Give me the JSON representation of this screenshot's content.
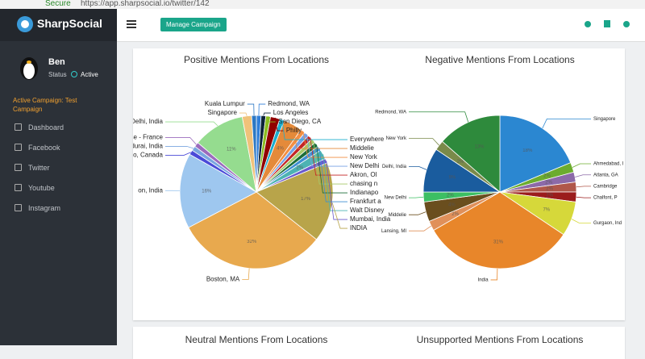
{
  "browser": {
    "secure": "Secure",
    "url": "https://app.sharpsocial.io/twitter/142"
  },
  "sidebar": {
    "logo": "SharpSocial",
    "user": {
      "name": "Ben",
      "status_label": "Status",
      "status": "Active"
    },
    "campaign": "Active Campaign: Test Campaign",
    "nav": [
      "Dashboard",
      "Facebook",
      "Twitter",
      "Youtube",
      "Instagram"
    ]
  },
  "header": {
    "button": "Manage Campaign"
  },
  "charts": [
    {
      "type": "pie",
      "title": "Positive Mentions From Locations",
      "labels": [
        "Redmond, WA",
        "Los Angeles",
        "San Diego, CA",
        "Philly",
        "Everywhere",
        "Middelie",
        "New York",
        "New Delhi",
        "Akron, Ol",
        "chasing n",
        "Indianapo",
        "Frankfurt a",
        "Walt Disney",
        "Mumbai, India",
        "INDIA",
        "Boston, MA",
        "on, India",
        "lo, Canada",
        "Madurai, India",
        "Suisse - France",
        "New Delhi, India",
        "Singapore",
        "Kuala Lumpur"
      ],
      "values": [
        1,
        1,
        1,
        2,
        1,
        4,
        1,
        1,
        1,
        1,
        1,
        1,
        2,
        1,
        17,
        32,
        16,
        1,
        1,
        1,
        11,
        2,
        1
      ],
      "value_labels": [
        null,
        null,
        null,
        null,
        null,
        "4%",
        null,
        null,
        null,
        null,
        null,
        null,
        "2%",
        null,
        "17%",
        "32%",
        "16%",
        null,
        null,
        null,
        "11%",
        null,
        null
      ],
      "colors": [
        "#2f7ed8",
        "#0d233a",
        "#8bbc21",
        "#910000",
        "#1aadce",
        "#e48a3a",
        "#f28f43",
        "#77a1e5",
        "#c42525",
        "#a6c96a",
        "#1b6e3a",
        "#3d8fd1",
        "#4db3b3",
        "#6a5acd",
        "#b8a44a",
        "#e8a94e",
        "#9ec7ef",
        "#4a4ad8",
        "#7aa6e0",
        "#9b6bbd",
        "#95dc8f",
        "#f0c27a",
        "#2c78c4"
      ]
    },
    {
      "type": "pie",
      "title": "Negative Mentions From Locations",
      "labels": [
        "Singapore",
        "Ahmedabad, I",
        "Atlanta, GA",
        "Cambridge",
        "Chalfont, P",
        "Gurgaon, Ind",
        "India",
        "Lansing, MI",
        "Middelie",
        "New Delhi",
        "Delhi, India",
        "New York",
        "Redmond, WA"
      ],
      "values": [
        18,
        2,
        2,
        2,
        2,
        7,
        31,
        2,
        4,
        2,
        9,
        2,
        13
      ],
      "value_labels": [
        "18%",
        "2%",
        "2%",
        "2%",
        "2%",
        "7%",
        "31%",
        "2%",
        "4%",
        "2%",
        "9%",
        "2%",
        "13%"
      ],
      "colors": [
        "#2b87d1",
        "#6cac2e",
        "#8c6aa8",
        "#b0574a",
        "#9b1c1c",
        "#d6d83a",
        "#e8862a",
        "#e0905a",
        "#6a4e1e",
        "#3cbf63",
        "#1a5c9e",
        "#7a8a4a",
        "#2e8a3c"
      ]
    },
    {
      "type": "pie",
      "title": "Neutral Mentions From Locations"
    },
    {
      "type": "pie",
      "title": "Unsupported Mentions From Locations"
    }
  ]
}
